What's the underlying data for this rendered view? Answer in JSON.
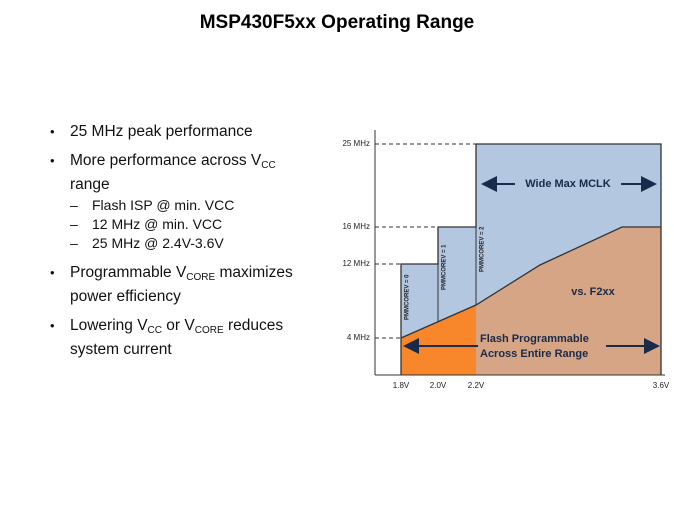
{
  "title": "MSP430F5xx Operating Range",
  "bullets": [
    {
      "text": "25 MHz peak performance"
    },
    {
      "text": "More performance across V",
      "sub": "CC",
      "rest": "range",
      "subitems": [
        "Flash ISP @ min. VCC",
        "12 MHz @ min. VCC",
        "25 MHz @ 2.4V-3.6V"
      ]
    },
    {
      "text": "Programmable V",
      "sub": "CORE",
      "rest": "maximizes power efficiency"
    },
    {
      "text": "Lowering V",
      "sub": "CC",
      "mid": " or V",
      "sub2": "CORE",
      "rest": "reduces system current"
    }
  ],
  "diagram": {
    "y_labels": [
      "25 MHz",
      "16 MHz",
      "12 MHz",
      "4 MHz"
    ],
    "x_labels": [
      "1.8V",
      "2.0V",
      "2.2V",
      "3.6V"
    ],
    "levels": [
      "PMMCOREV = 0",
      "PMMCOREV = 1",
      "PMMCOREV = 2"
    ],
    "wide": "Wide Max MCLK",
    "compare": "vs. F2xx",
    "flash": [
      "Flash Programmable",
      "Across Entire Range"
    ]
  }
}
